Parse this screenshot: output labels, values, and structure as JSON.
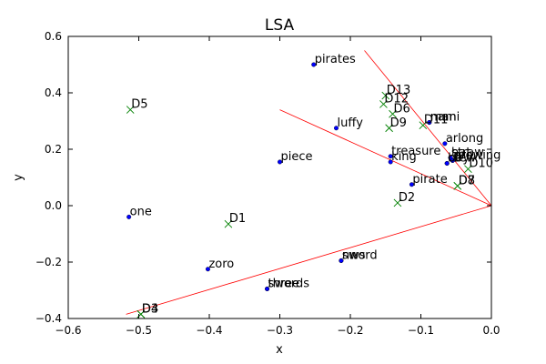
{
  "chart_data": {
    "type": "scatter",
    "title": "LSA",
    "xlabel": "x",
    "ylabel": "y",
    "xlim": [
      -0.6,
      0.0
    ],
    "ylim": [
      -0.4,
      0.6
    ],
    "xticks": [
      -0.6,
      -0.5,
      -0.4,
      -0.3,
      -0.2,
      -0.1,
      0.0
    ],
    "xtick_labels": [
      "−0.6",
      "−0.5",
      "−0.4",
      "−0.3",
      "−0.2",
      "−0.1",
      "0.0"
    ],
    "yticks": [
      -0.4,
      -0.2,
      0.0,
      0.2,
      0.4,
      0.6
    ],
    "ytick_labels": [
      "−0.4",
      "−0.2",
      "0.0",
      "0.2",
      "0.4",
      "0.6"
    ],
    "grid": false,
    "colors": {
      "terms": "#0000ff",
      "docs": "#008000",
      "lines": "#ff0000"
    },
    "terms": [
      {
        "label": "pirates",
        "x": -0.252,
        "y": 0.5
      },
      {
        "label": "luffy",
        "x": -0.22,
        "y": 0.275
      },
      {
        "label": "piece",
        "x": -0.3,
        "y": 0.155
      },
      {
        "label": "one",
        "x": -0.514,
        "y": -0.04
      },
      {
        "label": "zoro",
        "x": -0.402,
        "y": -0.225
      },
      {
        "label": "swords",
        "x": -0.318,
        "y": -0.295
      },
      {
        "label": "three",
        "x": -0.318,
        "y": -0.295
      },
      {
        "label": "sword",
        "x": -0.213,
        "y": -0.195
      },
      {
        "label": "nws",
        "x": -0.213,
        "y": -0.195
      },
      {
        "label": "treasure",
        "x": -0.143,
        "y": 0.175
      },
      {
        "label": "king",
        "x": -0.143,
        "y": 0.155
      },
      {
        "label": "pirate",
        "x": -0.113,
        "y": 0.075
      },
      {
        "label": "arlong",
        "x": -0.066,
        "y": 0.22
      },
      {
        "label": "nami",
        "x": -0.088,
        "y": 0.295
      },
      {
        "label": "man",
        "x": -0.088,
        "y": 0.295
      },
      {
        "label": "hat",
        "x": -0.058,
        "y": 0.17
      },
      {
        "label": "straw",
        "x": -0.058,
        "y": 0.17
      },
      {
        "label": "boy",
        "x": -0.063,
        "y": 0.15
      },
      {
        "label": "crew",
        "x": -0.063,
        "y": 0.15
      },
      {
        "label": "growing",
        "x": -0.055,
        "y": 0.16
      },
      {
        "label": "prow",
        "x": -0.055,
        "y": 0.16
      }
    ],
    "docs": [
      {
        "label": "D1",
        "x": -0.373,
        "y": -0.065
      },
      {
        "label": "D2",
        "x": -0.133,
        "y": 0.01
      },
      {
        "label": "D3",
        "x": -0.497,
        "y": -0.385
      },
      {
        "label": "D4",
        "x": -0.497,
        "y": -0.385
      },
      {
        "label": "D5",
        "x": -0.512,
        "y": 0.34
      },
      {
        "label": "D6",
        "x": -0.14,
        "y": 0.325
      },
      {
        "label": "D7",
        "x": -0.048,
        "y": 0.07
      },
      {
        "label": "D8",
        "x": -0.048,
        "y": 0.07
      },
      {
        "label": "D9",
        "x": -0.145,
        "y": 0.275
      },
      {
        "label": "D10",
        "x": -0.033,
        "y": 0.13
      },
      {
        "label": "D11",
        "x": -0.097,
        "y": 0.285
      },
      {
        "label": "D12",
        "x": -0.153,
        "y": 0.36
      },
      {
        "label": "D13",
        "x": -0.15,
        "y": 0.39
      }
    ],
    "lines": [
      {
        "from": [
          0.0,
          0.0
        ],
        "to": [
          -0.518,
          -0.385
        ]
      },
      {
        "from": [
          0.0,
          0.0
        ],
        "to": [
          -0.3,
          0.34
        ]
      },
      {
        "from": [
          0.0,
          0.0
        ],
        "to": [
          -0.18,
          0.55
        ]
      }
    ]
  }
}
